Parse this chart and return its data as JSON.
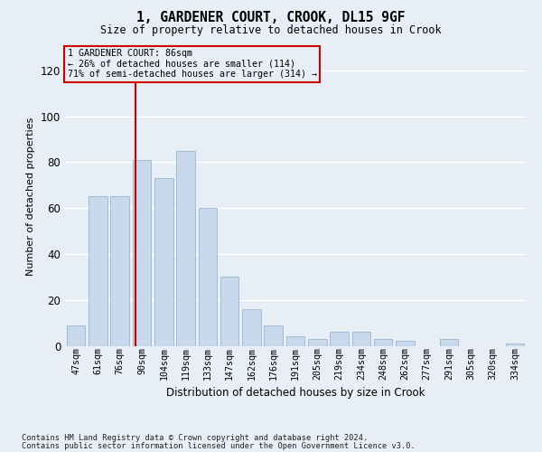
{
  "title": "1, GARDENER COURT, CROOK, DL15 9GF",
  "subtitle": "Size of property relative to detached houses in Crook",
  "xlabel": "Distribution of detached houses by size in Crook",
  "ylabel": "Number of detached properties",
  "categories": [
    "47sqm",
    "61sqm",
    "76sqm",
    "90sqm",
    "104sqm",
    "119sqm",
    "133sqm",
    "147sqm",
    "162sqm",
    "176sqm",
    "191sqm",
    "205sqm",
    "219sqm",
    "234sqm",
    "248sqm",
    "262sqm",
    "277sqm",
    "291sqm",
    "305sqm",
    "320sqm",
    "334sqm"
  ],
  "values": [
    9,
    65,
    65,
    81,
    73,
    85,
    60,
    30,
    16,
    9,
    4,
    3,
    6,
    6,
    3,
    2,
    0,
    3,
    0,
    0,
    1
  ],
  "bar_color": "#c8d9ee",
  "bar_edge_color": "#9ab5d0",
  "ylim": [
    0,
    130
  ],
  "yticks": [
    0,
    20,
    40,
    60,
    80,
    100,
    120
  ],
  "property_label": "1 GARDENER COURT: 86sqm",
  "annotation_line1": "← 26% of detached houses are smaller (114)",
  "annotation_line2": "71% of semi-detached houses are larger (314) →",
  "vline_color": "#cc0000",
  "box_edge_color": "#cc0000",
  "footer1": "Contains HM Land Registry data © Crown copyright and database right 2024.",
  "footer2": "Contains public sector information licensed under the Open Government Licence v3.0.",
  "background_color": "#e8eef5",
  "grid_color": "#ffffff",
  "vline_x": 2.72
}
